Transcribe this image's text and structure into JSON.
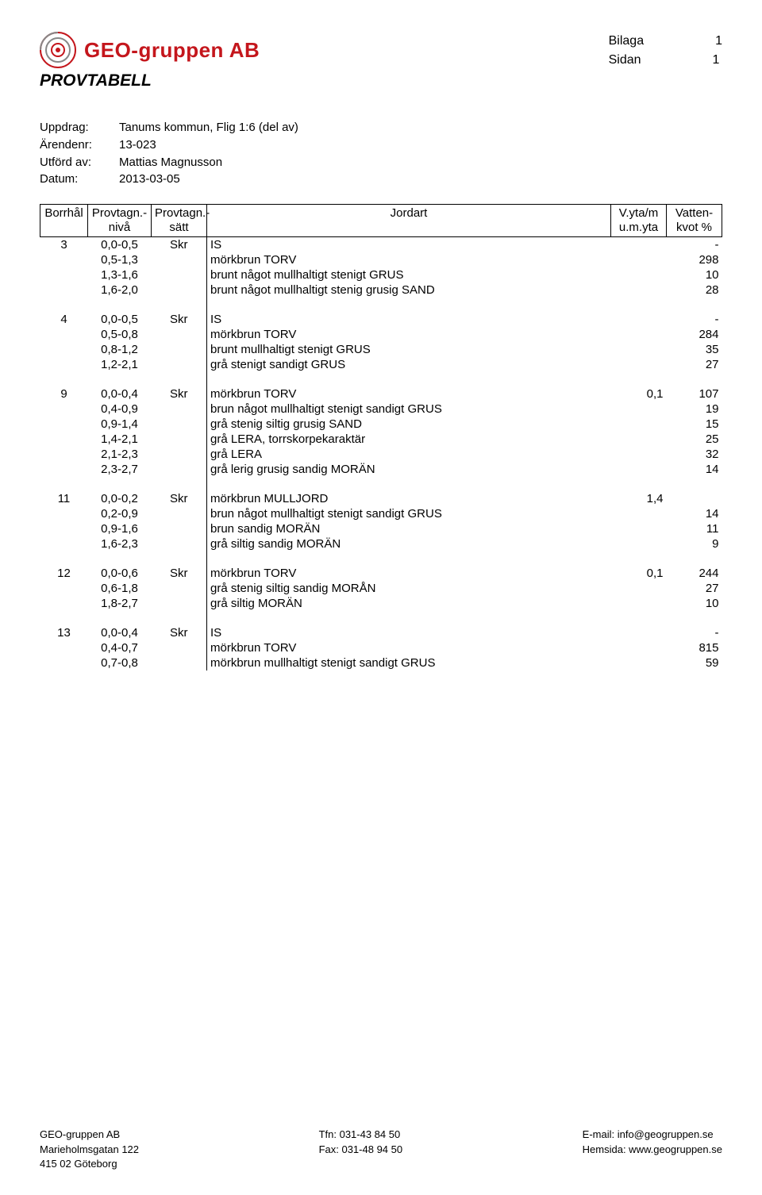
{
  "header": {
    "company_name": "GEO-gruppen AB",
    "bilaga_label": "Bilaga",
    "bilaga_value": "1",
    "sidan_label": "Sidan",
    "sidan_value": "1"
  },
  "doc_title": "PROVTABELL",
  "meta": {
    "uppdrag_label": "Uppdrag:",
    "uppdrag_value": "Tanums kommun, Flig 1:6 (del av)",
    "arendenr_label": "Ärendenr:",
    "arendenr_value": "13-023",
    "utford_label": "Utförd av:",
    "utford_value": "Mattias Magnusson",
    "datum_label": "Datum:",
    "datum_value": "2013-03-05"
  },
  "table": {
    "headers": {
      "borrhal": "Borrhål",
      "niva": "Provtagn.-nivå",
      "satt": "Provtagn.-sätt",
      "jordart": "Jordart",
      "vyta": "V.yta/m u.m.yta",
      "kvot": "Vatten-kvot %"
    },
    "groups": [
      {
        "borrhal": "3",
        "rows": [
          {
            "niva": "0,0-0,5",
            "satt": "Skr",
            "jordart": "IS",
            "vyta": "",
            "kvot": "-"
          },
          {
            "niva": "0,5-1,3",
            "satt": "",
            "jordart": "mörkbrun TORV",
            "vyta": "",
            "kvot": "298"
          },
          {
            "niva": "1,3-1,6",
            "satt": "",
            "jordart": "brunt något mullhaltigt stenigt GRUS",
            "vyta": "",
            "kvot": "10"
          },
          {
            "niva": "1,6-2,0",
            "satt": "",
            "jordart": "brunt något mullhaltigt stenig grusig SAND",
            "vyta": "",
            "kvot": "28"
          }
        ]
      },
      {
        "borrhal": "4",
        "rows": [
          {
            "niva": "0,0-0,5",
            "satt": "Skr",
            "jordart": "IS",
            "vyta": "",
            "kvot": "-"
          },
          {
            "niva": "0,5-0,8",
            "satt": "",
            "jordart": "mörkbrun TORV",
            "vyta": "",
            "kvot": "284"
          },
          {
            "niva": "0,8-1,2",
            "satt": "",
            "jordart": "brunt mullhaltigt stenigt GRUS",
            "vyta": "",
            "kvot": "35"
          },
          {
            "niva": "1,2-2,1",
            "satt": "",
            "jordart": "grå stenigt sandigt GRUS",
            "vyta": "",
            "kvot": "27"
          }
        ]
      },
      {
        "borrhal": "9",
        "rows": [
          {
            "niva": "0,0-0,4",
            "satt": "Skr",
            "jordart": "mörkbrun TORV",
            "vyta": "0,1",
            "kvot": "107"
          },
          {
            "niva": "0,4-0,9",
            "satt": "",
            "jordart": "brun något mullhaltigt stenigt sandigt GRUS",
            "vyta": "",
            "kvot": "19"
          },
          {
            "niva": "0,9-1,4",
            "satt": "",
            "jordart": "grå stenig siltig grusig SAND",
            "vyta": "",
            "kvot": "15"
          },
          {
            "niva": "1,4-2,1",
            "satt": "",
            "jordart": "grå LERA, torrskorpekaraktär",
            "vyta": "",
            "kvot": "25"
          },
          {
            "niva": "2,1-2,3",
            "satt": "",
            "jordart": "grå LERA",
            "vyta": "",
            "kvot": "32"
          },
          {
            "niva": "2,3-2,7",
            "satt": "",
            "jordart": "grå lerig grusig sandig MORÄN",
            "vyta": "",
            "kvot": "14"
          }
        ]
      },
      {
        "borrhal": "11",
        "rows": [
          {
            "niva": "0,0-0,2",
            "satt": "Skr",
            "jordart": "mörkbrun MULLJORD",
            "vyta": "1,4",
            "kvot": ""
          },
          {
            "niva": "0,2-0,9",
            "satt": "",
            "jordart": "brun något mullhaltigt stenigt sandigt GRUS",
            "vyta": "",
            "kvot": "14"
          },
          {
            "niva": "0,9-1,6",
            "satt": "",
            "jordart": "brun sandig MORÄN",
            "vyta": "",
            "kvot": "11"
          },
          {
            "niva": "1,6-2,3",
            "satt": "",
            "jordart": "grå siltig sandig MORÄN",
            "vyta": "",
            "kvot": "9"
          }
        ]
      },
      {
        "borrhal": "12",
        "rows": [
          {
            "niva": "0,0-0,6",
            "satt": "Skr",
            "jordart": "mörkbrun TORV",
            "vyta": "0,1",
            "kvot": "244"
          },
          {
            "niva": "0,6-1,8",
            "satt": "",
            "jordart": "grå stenig siltig sandig MORÅN",
            "vyta": "",
            "kvot": "27"
          },
          {
            "niva": "1,8-2,7",
            "satt": "",
            "jordart": "grå siltig MORÄN",
            "vyta": "",
            "kvot": "10"
          }
        ]
      },
      {
        "borrhal": "13",
        "rows": [
          {
            "niva": "0,0-0,4",
            "satt": "Skr",
            "jordart": "IS",
            "vyta": "",
            "kvot": "-"
          },
          {
            "niva": "0,4-0,7",
            "satt": "",
            "jordart": "mörkbrun TORV",
            "vyta": "",
            "kvot": "815"
          },
          {
            "niva": "0,7-0,8",
            "satt": "",
            "jordart": "mörkbrun mullhaltigt stenigt sandigt GRUS",
            "vyta": "",
            "kvot": "59"
          }
        ]
      }
    ]
  },
  "footer": {
    "col1": [
      "GEO-gruppen AB",
      "Marieholmsgatan 122",
      "415 02 Göteborg"
    ],
    "col2": [
      "Tfn: 031-43 84 50",
      "Fax: 031-48 94 50"
    ],
    "col3": [
      "E-mail: info@geogruppen.se",
      "Hemsida: www.geogruppen.se"
    ]
  }
}
